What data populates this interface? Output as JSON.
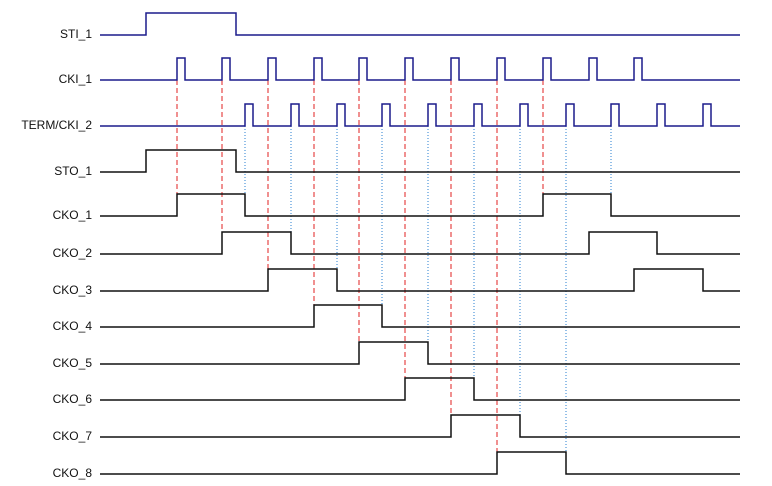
{
  "signals": [
    "STI_1",
    "CKI_1",
    "TERM/CKI_2",
    "STO_1",
    "CKO_1",
    "CKO_2",
    "CKO_3",
    "CKO_4",
    "CKO_5",
    "CKO_6",
    "CKO_7",
    "CKO_8"
  ]
}
